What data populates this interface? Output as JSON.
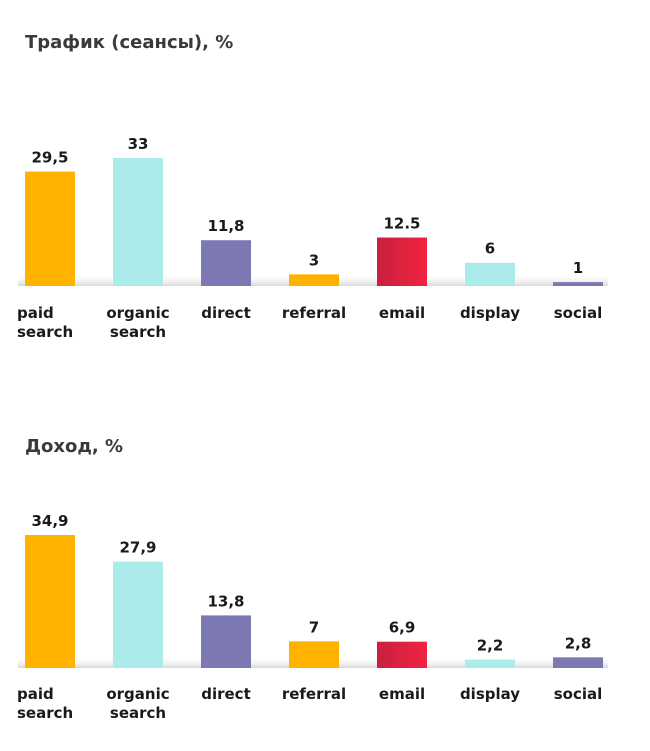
{
  "chart_data": [
    {
      "type": "bar",
      "title": "Трафик (сеансы), %",
      "categories": [
        "paid search",
        "organic search",
        "direct",
        "referral",
        "email",
        "display",
        "social"
      ],
      "value_labels": [
        "29,5",
        "33",
        "11,8",
        "3",
        "12.5",
        "6",
        "1"
      ],
      "values": [
        29.5,
        33,
        11.8,
        3,
        12.5,
        6,
        1
      ],
      "bar_colors": [
        "#FFB300",
        "#ABECEA",
        "#7B78B2",
        "#FFB300",
        "#E5203F",
        "#ABECEA",
        "#7B78B2"
      ],
      "ylim": [
        0,
        33
      ],
      "grid": false,
      "xlabel": "",
      "ylabel": ""
    },
    {
      "type": "bar",
      "title": "Доход, %",
      "categories": [
        "paid search",
        "organic search",
        "direct",
        "referral",
        "email",
        "display",
        "social"
      ],
      "value_labels": [
        "34,9",
        "27,9",
        "13,8",
        "7",
        "6,9",
        "2,2",
        "2,8"
      ],
      "values": [
        34.9,
        27.9,
        13.8,
        7,
        6.9,
        2.2,
        2.8
      ],
      "bar_colors": [
        "#FFB300",
        "#ABECEA",
        "#7B78B2",
        "#FFB300",
        "#E5203F",
        "#ABECEA",
        "#7B78B2"
      ],
      "ylim": [
        0,
        34.9
      ],
      "grid": false,
      "xlabel": "",
      "ylabel": ""
    }
  ]
}
